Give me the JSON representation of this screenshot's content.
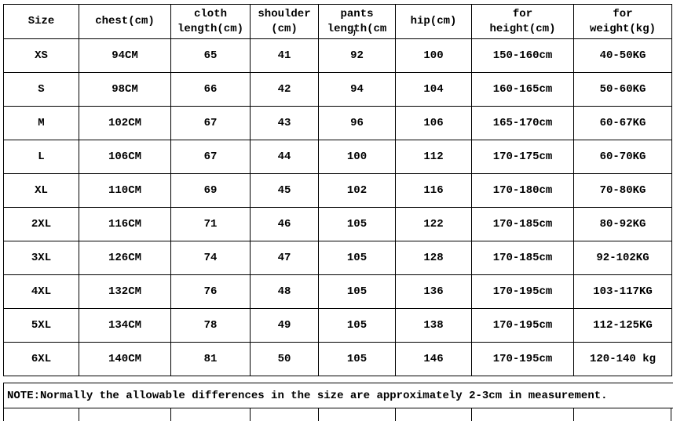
{
  "page": {
    "background_color": "#ffffff",
    "border_color": "#000000",
    "text_color": "#000000"
  },
  "table": {
    "headers": [
      "Size",
      "chest(cm)",
      "cloth\nlength(cm)",
      "shoulder\n(cm)",
      "pants\nlength(cm",
      "hip(cm)",
      "for\nheight(cm)",
      "for\nweight(kg)"
    ],
    "rows": [
      [
        "XS",
        "94CM",
        "65",
        "41",
        "92",
        "100",
        "150-160cm",
        "40-50KG"
      ],
      [
        "S",
        "98CM",
        "66",
        "42",
        "94",
        "104",
        "160-165cm",
        "50-60KG"
      ],
      [
        "M",
        "102CM",
        "67",
        "43",
        "96",
        "106",
        "165-170cm",
        "60-67KG"
      ],
      [
        "L",
        "106CM",
        "67",
        "44",
        "100",
        "112",
        "170-175cm",
        "60-70KG"
      ],
      [
        "XL",
        "110CM",
        "69",
        "45",
        "102",
        "116",
        "170-180cm",
        "70-80KG"
      ],
      [
        "2XL",
        "116CM",
        "71",
        "46",
        "105",
        "122",
        "170-185cm",
        "80-92KG"
      ],
      [
        "3XL",
        "126CM",
        "74",
        "47",
        "105",
        "128",
        "170-185cm",
        "92-102KG"
      ],
      [
        "4XL",
        "132CM",
        "76",
        "48",
        "105",
        "136",
        "170-195cm",
        "103-117KG"
      ],
      [
        "5XL",
        "134CM",
        "78",
        "49",
        "105",
        "138",
        "170-195cm",
        "112-125KG"
      ],
      [
        "6XL",
        "140CM",
        "81",
        "50",
        "105",
        "146",
        "170-195cm",
        "120-140 kg"
      ]
    ]
  },
  "stray_mark": ")",
  "note": "NOTE:Normally the allowable differences in the size are approximately 2-3cm in measurement."
}
